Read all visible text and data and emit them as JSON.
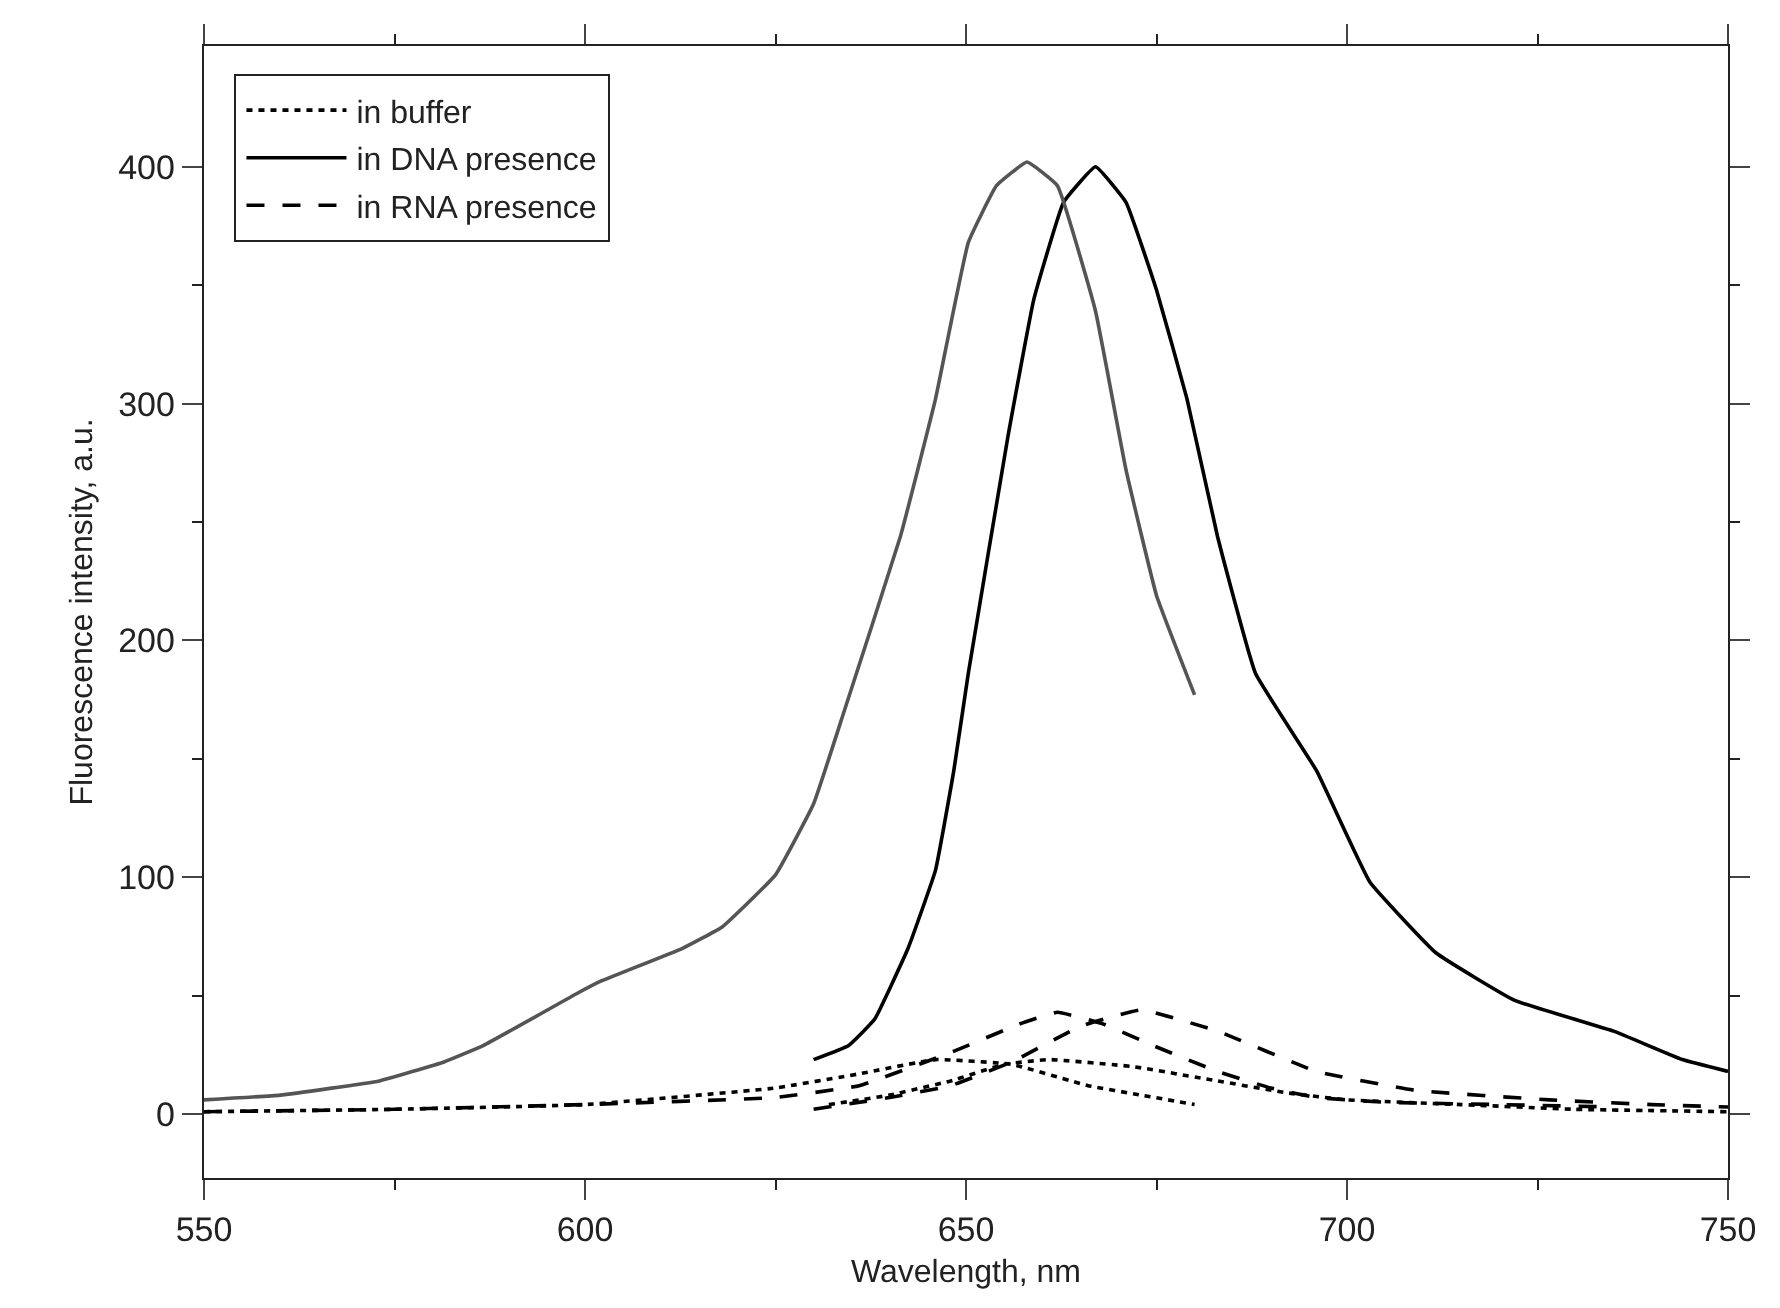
{
  "chart_data": {
    "type": "line",
    "xlabel": "Wavelength, nm",
    "ylabel": "Fluorescence intensity, a.u.",
    "xlim": [
      550,
      750
    ],
    "ylim": [
      -27,
      451
    ],
    "xticks": [
      550,
      {
        "value": 575,
        "label": null
      },
      600,
      {
        "value": 625,
        "label": null
      },
      650,
      {
        "value": 675,
        "label": null
      },
      700,
      {
        "value": 725,
        "label": null
      },
      750
    ],
    "yticks": [
      0,
      {
        "value": 50,
        "label": null
      },
      100,
      {
        "value": 150,
        "label": null
      },
      200,
      {
        "value": 250,
        "label": null
      },
      300,
      {
        "value": 350,
        "label": null
      },
      400
    ],
    "grid": false,
    "legend": "top left",
    "marker": "none",
    "series": [
      {
        "name": "in buffer",
        "color": "#000000",
        "line_style": "dotted",
        "x": [
          550,
          575,
          600,
          625,
          636,
          646,
          656,
          666,
          673,
          680
        ],
        "values": [
          1,
          2,
          4,
          11,
          17,
          23,
          21,
          12,
          8,
          4
        ]
      },
      {
        "color": "#000000",
        "line_style": "dotted",
        "x": [
          632,
          640,
          648,
          655,
          661,
          672,
          683,
          692,
          700,
          715,
          730,
          750
        ],
        "values": [
          4,
          8,
          14,
          21,
          23,
          20,
          14,
          9,
          6,
          4,
          2,
          1
        ]
      },
      {
        "name": "in DNA presence",
        "color": "#000000",
        "line_style": "solid",
        "x": [
          630,
          634.6,
          638,
          642.4,
          646,
          648.4,
          650.3,
          655.5,
          658.9,
          662.8,
          667,
          671,
          675,
          679,
          683,
          688,
          696,
          703,
          711.7,
          722,
          735,
          744,
          750
        ],
        "values": [
          23,
          29,
          40,
          70,
          103,
          145,
          186,
          286,
          344,
          385,
          400,
          385,
          348,
          302,
          244,
          186,
          145,
          98,
          68,
          48,
          35,
          23,
          18
        ]
      },
      {
        "color": "#555555",
        "line_style": "solid",
        "x": [
          550,
          560,
          573,
          581.5,
          586.7,
          599,
          602,
          612.8,
          618,
          625,
          630,
          634,
          641.4,
          646,
          650.3,
          654,
          658,
          662,
          667,
          671,
          675,
          680
        ],
        "values": [
          6,
          8,
          14,
          22,
          29,
          51,
          56,
          70,
          79,
          101,
          131,
          170,
          244,
          302,
          368,
          392,
          402,
          392,
          339,
          272,
          219,
          177
        ]
      },
      {
        "name": "in RNA presence",
        "color": "#000000",
        "line_style": "dashed",
        "x": [
          550,
          575,
          600,
          625,
          636,
          648,
          657,
          662,
          668,
          674.5,
          683,
          690,
          696,
          705,
          720,
          735
        ],
        "values": [
          1,
          2,
          4,
          7,
          12,
          26,
          38,
          43,
          38,
          29,
          18,
          11,
          7,
          5,
          4,
          3
        ]
      },
      {
        "color": "#000000",
        "line_style": "dashed",
        "x": [
          630,
          640,
          648,
          656,
          665,
          673,
          683,
          696,
          709,
          726.6,
          740,
          750
        ],
        "values": [
          2,
          7,
          12,
          22,
          37,
          44,
          35,
          18,
          10,
          6,
          4,
          3
        ]
      }
    ]
  }
}
